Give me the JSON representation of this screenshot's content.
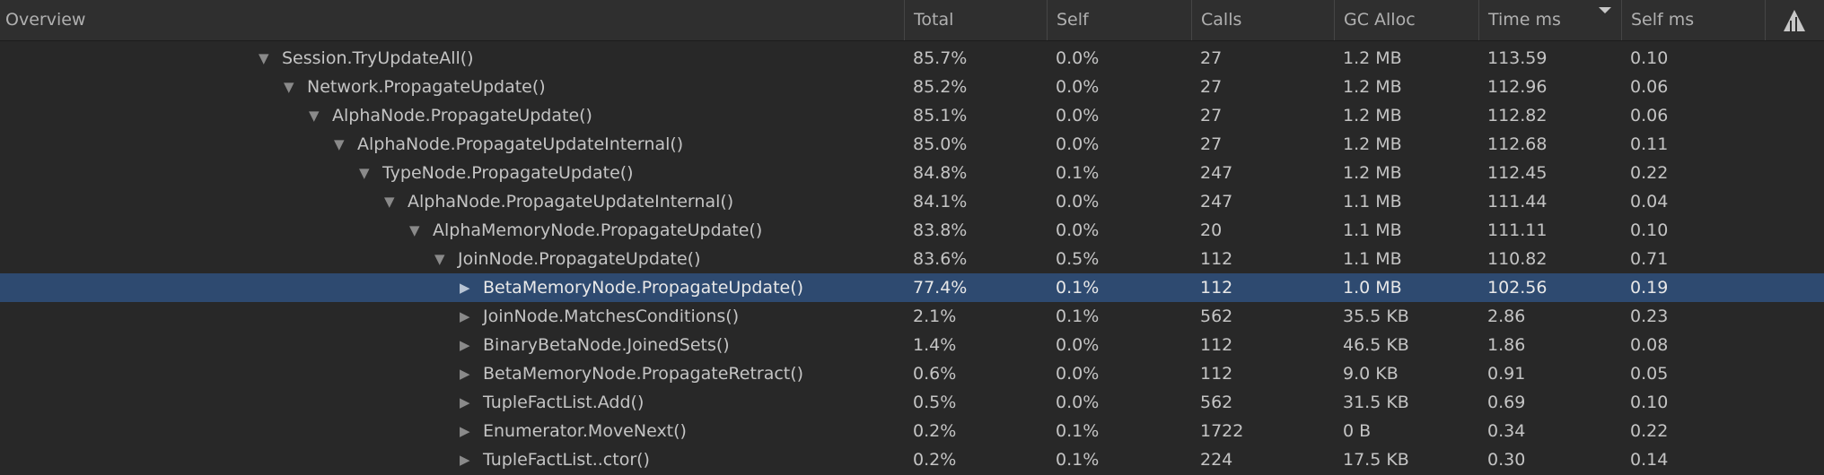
{
  "header": {
    "columns": [
      "Overview",
      "Total",
      "Self",
      "Calls",
      "GC Alloc",
      "Time ms",
      "Self ms"
    ],
    "sort_column": 5
  },
  "tree": {
    "name": "Session.TryUpdateAll()",
    "cells": [
      "85.7%",
      "0.0%",
      "27",
      "1.2 MB",
      "113.59",
      "0.10"
    ],
    "children": [
      {
        "name": "Network.PropagateUpdate()",
        "cells": [
          "85.2%",
          "0.0%",
          "27",
          "1.2 MB",
          "112.96",
          "0.06"
        ],
        "children": [
          {
            "name": "AlphaNode.PropagateUpdate()",
            "cells": [
              "85.1%",
              "0.0%",
              "27",
              "1.2 MB",
              "112.82",
              "0.06"
            ],
            "children": [
              {
                "name": "AlphaNode.PropagateUpdateInternal()",
                "cells": [
                  "85.0%",
                  "0.0%",
                  "27",
                  "1.2 MB",
                  "112.68",
                  "0.11"
                ],
                "children": [
                  {
                    "name": "TypeNode.PropagateUpdate()",
                    "cells": [
                      "84.8%",
                      "0.1%",
                      "247",
                      "1.2 MB",
                      "112.45",
                      "0.22"
                    ],
                    "children": [
                      {
                        "name": "AlphaNode.PropagateUpdateInternal()",
                        "cells": [
                          "84.1%",
                          "0.0%",
                          "247",
                          "1.1 MB",
                          "111.44",
                          "0.04"
                        ],
                        "children": [
                          {
                            "name": "AlphaMemoryNode.PropagateUpdate()",
                            "cells": [
                              "83.8%",
                              "0.0%",
                              "20",
                              "1.1 MB",
                              "111.11",
                              "0.10"
                            ],
                            "children": [
                              {
                                "name": "JoinNode.PropagateUpdate()",
                                "cells": [
                                  "83.6%",
                                  "0.5%",
                                  "112",
                                  "1.1 MB",
                                  "110.82",
                                  "0.71"
                                ],
                                "children": [
                                  {
                                    "name": "BetaMemoryNode.PropagateUpdate()",
                                    "cells": [
                                      "77.4%",
                                      "0.1%",
                                      "112",
                                      "1.0 MB",
                                      "102.56",
                                      "0.19"
                                    ],
                                    "selected": true
                                  },
                                  {
                                    "name": "JoinNode.MatchesConditions()",
                                    "cells": [
                                      "2.1%",
                                      "0.1%",
                                      "562",
                                      "35.5 KB",
                                      "2.86",
                                      "0.23"
                                    ]
                                  },
                                  {
                                    "name": "BinaryBetaNode.JoinedSets()",
                                    "cells": [
                                      "1.4%",
                                      "0.0%",
                                      "112",
                                      "46.5 KB",
                                      "1.86",
                                      "0.08"
                                    ]
                                  },
                                  {
                                    "name": "BetaMemoryNode.PropagateRetract()",
                                    "cells": [
                                      "0.6%",
                                      "0.0%",
                                      "112",
                                      "9.0 KB",
                                      "0.91",
                                      "0.05"
                                    ]
                                  },
                                  {
                                    "name": "TupleFactList.Add()",
                                    "cells": [
                                      "0.5%",
                                      "0.0%",
                                      "562",
                                      "31.5 KB",
                                      "0.69",
                                      "0.10"
                                    ]
                                  },
                                  {
                                    "name": "Enumerator.MoveNext()",
                                    "cells": [
                                      "0.2%",
                                      "0.1%",
                                      "1722",
                                      "0 B",
                                      "0.34",
                                      "0.22"
                                    ]
                                  },
                                  {
                                    "name": "TupleFactList..ctor()",
                                    "cells": [
                                      "0.2%",
                                      "0.1%",
                                      "224",
                                      "17.5 KB",
                                      "0.30",
                                      "0.14"
                                    ]
                                  }
                                ]
                              }
                            ]
                          }
                        ]
                      }
                    ]
                  }
                ]
              }
            ]
          }
        ]
      }
    ]
  }
}
